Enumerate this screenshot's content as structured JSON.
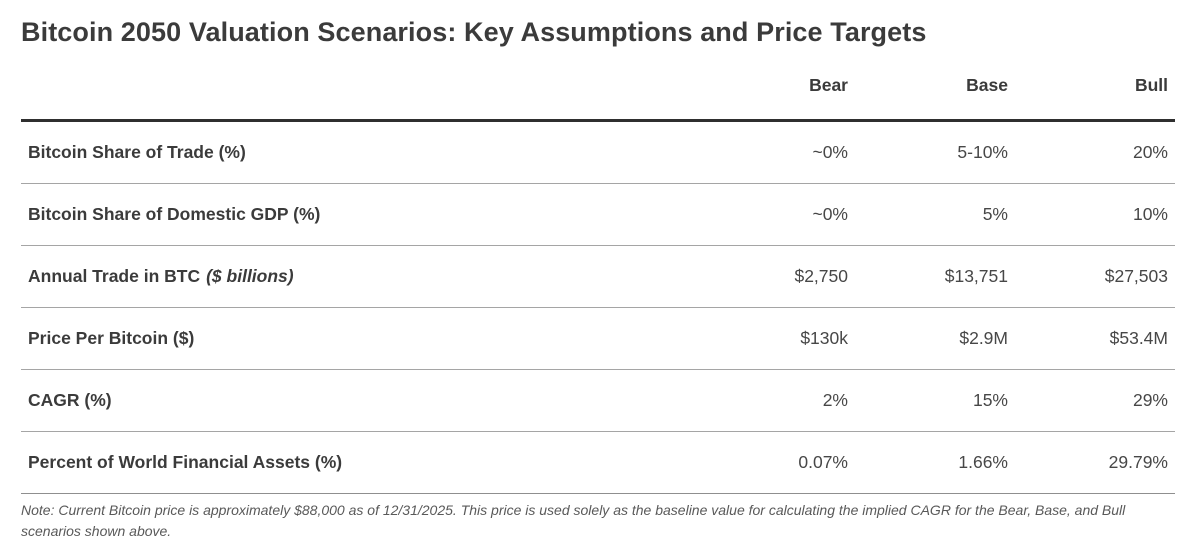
{
  "chart_data": {
    "type": "table",
    "title": "Bitcoin 2050 Valuation Scenarios: Key Assumptions and Price Targets",
    "columns": [
      "Bear",
      "Base",
      "Bull"
    ],
    "rows": [
      {
        "label": "Bitcoin Share of Trade (%)",
        "label_note": "",
        "values": [
          "~0%",
          "5-10%",
          "20%"
        ]
      },
      {
        "label": "Bitcoin Share of Domestic GDP (%)",
        "label_note": "",
        "values": [
          "~0%",
          "5%",
          "10%"
        ]
      },
      {
        "label": "Annual Trade in BTC",
        "label_note": "($ billions)",
        "values": [
          "$2,750",
          "$13,751",
          "$27,503"
        ]
      },
      {
        "label": "Price Per Bitcoin ($)",
        "label_note": "",
        "values": [
          "$130k",
          "$2.9M",
          "$53.4M"
        ]
      },
      {
        "label": "CAGR (%)",
        "label_note": "",
        "values": [
          "2%",
          "15%",
          "29%"
        ]
      },
      {
        "label": "Percent of World Financial Assets (%)",
        "label_note": "",
        "values": [
          "0.07%",
          "1.66%",
          "29.79%"
        ]
      }
    ],
    "footnote": "Note: Current Bitcoin price is approximately $88,000 as of 12/31/2025. This price is used solely as the baseline value for calculating the implied CAGR for the Bear, Base, and Bull scenarios shown above.",
    "layout": {
      "legend_position": "none",
      "grid": "horizontal-rules",
      "value_alignment": "right"
    }
  },
  "colors": {
    "title_text": "#3b3b3b",
    "value_text": "#474747",
    "note_text": "#595959",
    "heavy_rule": "#2f2f2f",
    "light_rule": "#a5a5a5",
    "background": "#ffffff"
  }
}
